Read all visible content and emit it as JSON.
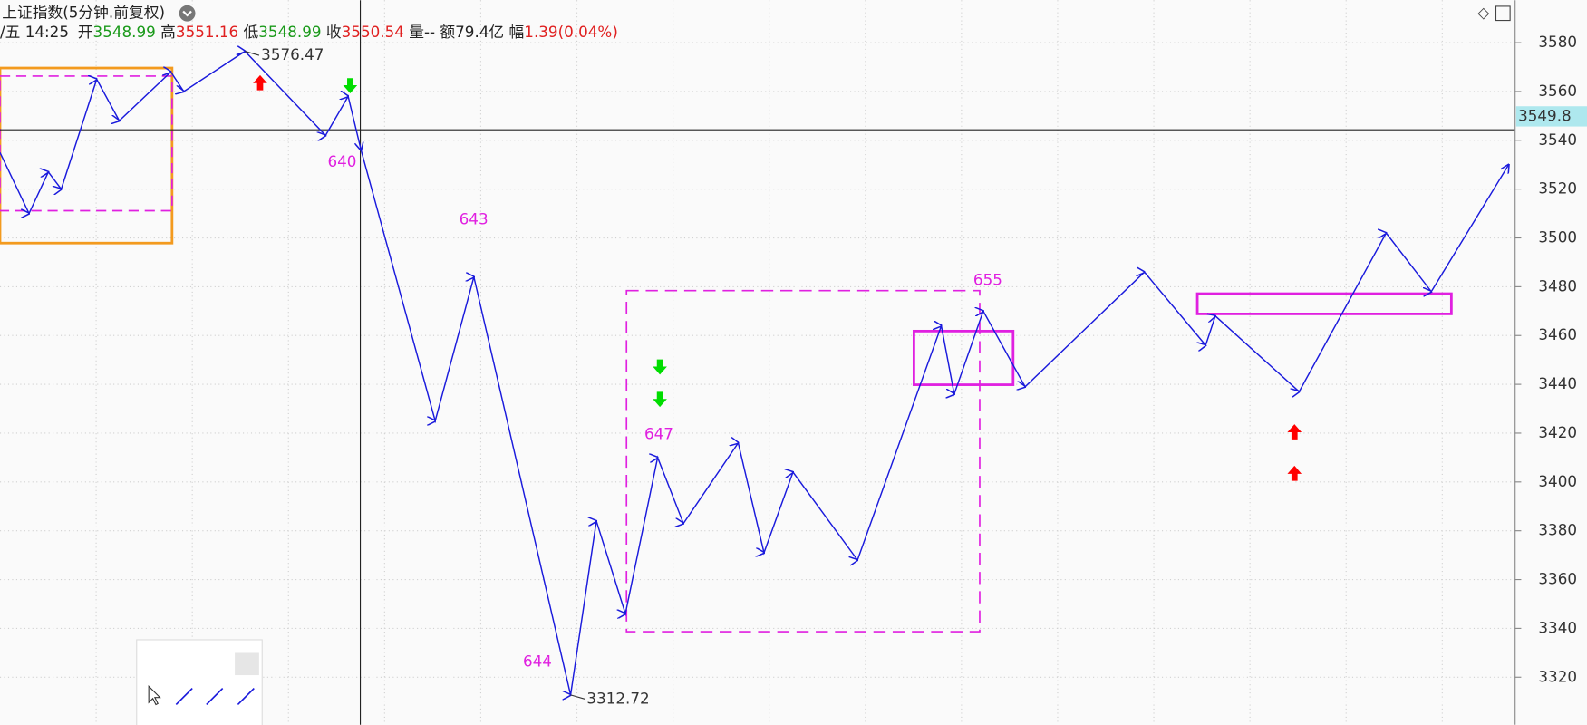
{
  "header": {
    "title": "上证指数(5分钟.前复权)",
    "time": "/五 14:25",
    "open_label": "开",
    "open": "3548.99",
    "high_label": "高",
    "high": "3551.16",
    "low_label": "低",
    "low": "3548.99",
    "close_label": "收",
    "close": "3550.54",
    "volume": "量--",
    "amount": "额79.4亿",
    "change_label": "幅",
    "change": "1.39(0.04%)"
  },
  "chart_data": {
    "type": "line",
    "x": [
      0,
      9,
      15,
      19,
      30,
      37,
      53,
      57,
      76,
      101,
      108,
      112,
      135,
      147,
      177,
      185,
      194,
      204,
      212,
      229,
      237,
      246,
      266,
      292,
      296,
      305,
      318,
      355,
      374,
      377,
      403,
      430,
      444,
      468
    ],
    "series": [
      {
        "color": "#1a1adc",
        "values": [
          3535,
          3510,
          3527,
          3520,
          3565,
          3548,
          3568,
          3560,
          3576.47,
          3542,
          3558,
          3536,
          3425,
          3484,
          3312.72,
          3384,
          3346,
          3410,
          3383,
          3416,
          3371,
          3404,
          3368,
          3464,
          3436,
          3470,
          3439,
          3486,
          3456,
          3468,
          3437,
          3502,
          3478,
          3530
        ],
        "value_labels": [
          null,
          null,
          null,
          null,
          null,
          null,
          null,
          null,
          "3576.47",
          null,
          null,
          null,
          null,
          null,
          "3312.72",
          null,
          null,
          null,
          null,
          null,
          null,
          null,
          null,
          null,
          null,
          null,
          null,
          null,
          null,
          null,
          null,
          null,
          null,
          null
        ]
      }
    ],
    "annotations": [
      "640",
      "643",
      "644",
      "647",
      "655"
    ],
    "annotation_color": "#e020e0",
    "last_price": 3549.8,
    "last_price_label": "3549.8",
    "xlim": [
      0,
      470
    ],
    "ylim": [
      3300.5,
      3597.4
    ],
    "yticks": [
      3320,
      3340,
      3360,
      3380,
      3400,
      3420,
      3440,
      3460,
      3480,
      3500,
      3520,
      3540,
      3560,
      3580
    ],
    "grid": true
  }
}
